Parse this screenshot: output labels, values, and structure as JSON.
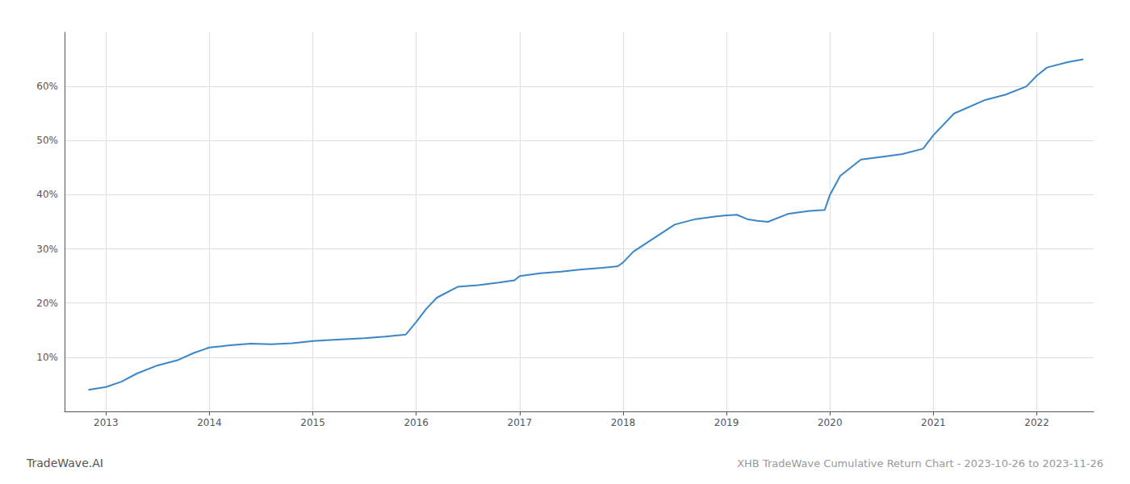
{
  "chart_data": {
    "type": "line",
    "title": "XHB TradeWave Cumulative Return Chart - 2023-10-26 to 2023-11-26",
    "annotations": [
      "TradeWave.AI"
    ],
    "color": "#3a86c8",
    "grid": true,
    "x": [
      2012.83,
      2013.0,
      2013.15,
      2013.3,
      2013.5,
      2013.7,
      2013.85,
      2014.0,
      2014.1,
      2014.2,
      2014.4,
      2014.6,
      2014.8,
      2014.95,
      2015.0,
      2015.2,
      2015.5,
      2015.7,
      2015.9,
      2016.0,
      2016.1,
      2016.2,
      2016.4,
      2016.6,
      2016.8,
      2016.95,
      2017.0,
      2017.2,
      2017.4,
      2017.6,
      2017.8,
      2017.95,
      2018.0,
      2018.1,
      2018.3,
      2018.5,
      2018.7,
      2018.9,
      2019.0,
      2019.1,
      2019.2,
      2019.3,
      2019.4,
      2019.6,
      2019.8,
      2019.95,
      2020.0,
      2020.1,
      2020.3,
      2020.5,
      2020.7,
      2020.9,
      2021.0,
      2021.2,
      2021.5,
      2021.7,
      2021.9,
      2022.0,
      2022.1,
      2022.3,
      2022.45
    ],
    "values": [
      4.0,
      4.5,
      5.5,
      7.0,
      8.5,
      9.5,
      10.8,
      11.8,
      12.0,
      12.2,
      12.5,
      12.4,
      12.6,
      12.9,
      13.0,
      13.2,
      13.5,
      13.8,
      14.2,
      16.5,
      19.0,
      21.0,
      23.0,
      23.3,
      23.8,
      24.2,
      25.0,
      25.5,
      25.8,
      26.2,
      26.5,
      26.8,
      27.5,
      29.5,
      32.0,
      34.5,
      35.5,
      36.0,
      36.2,
      36.3,
      35.5,
      35.2,
      35.0,
      36.5,
      37.0,
      37.2,
      40.0,
      43.5,
      46.5,
      47.0,
      47.5,
      48.5,
      51.0,
      55.0,
      57.5,
      58.5,
      60.0,
      62.0,
      63.5,
      64.5,
      65.0
    ],
    "xlim": [
      2012.6,
      2022.55
    ],
    "xticks": [
      2013,
      2014,
      2015,
      2016,
      2017,
      2018,
      2019,
      2020,
      2021,
      2022
    ],
    "ylim": [
      0,
      70
    ],
    "yticks": [
      {
        "value": 10,
        "label": "10%"
      },
      {
        "value": 20,
        "label": "20%"
      },
      {
        "value": 30,
        "label": "30%"
      },
      {
        "value": 40,
        "label": "40%"
      },
      {
        "value": 50,
        "label": "50%"
      },
      {
        "value": 60,
        "label": "60%"
      }
    ]
  }
}
